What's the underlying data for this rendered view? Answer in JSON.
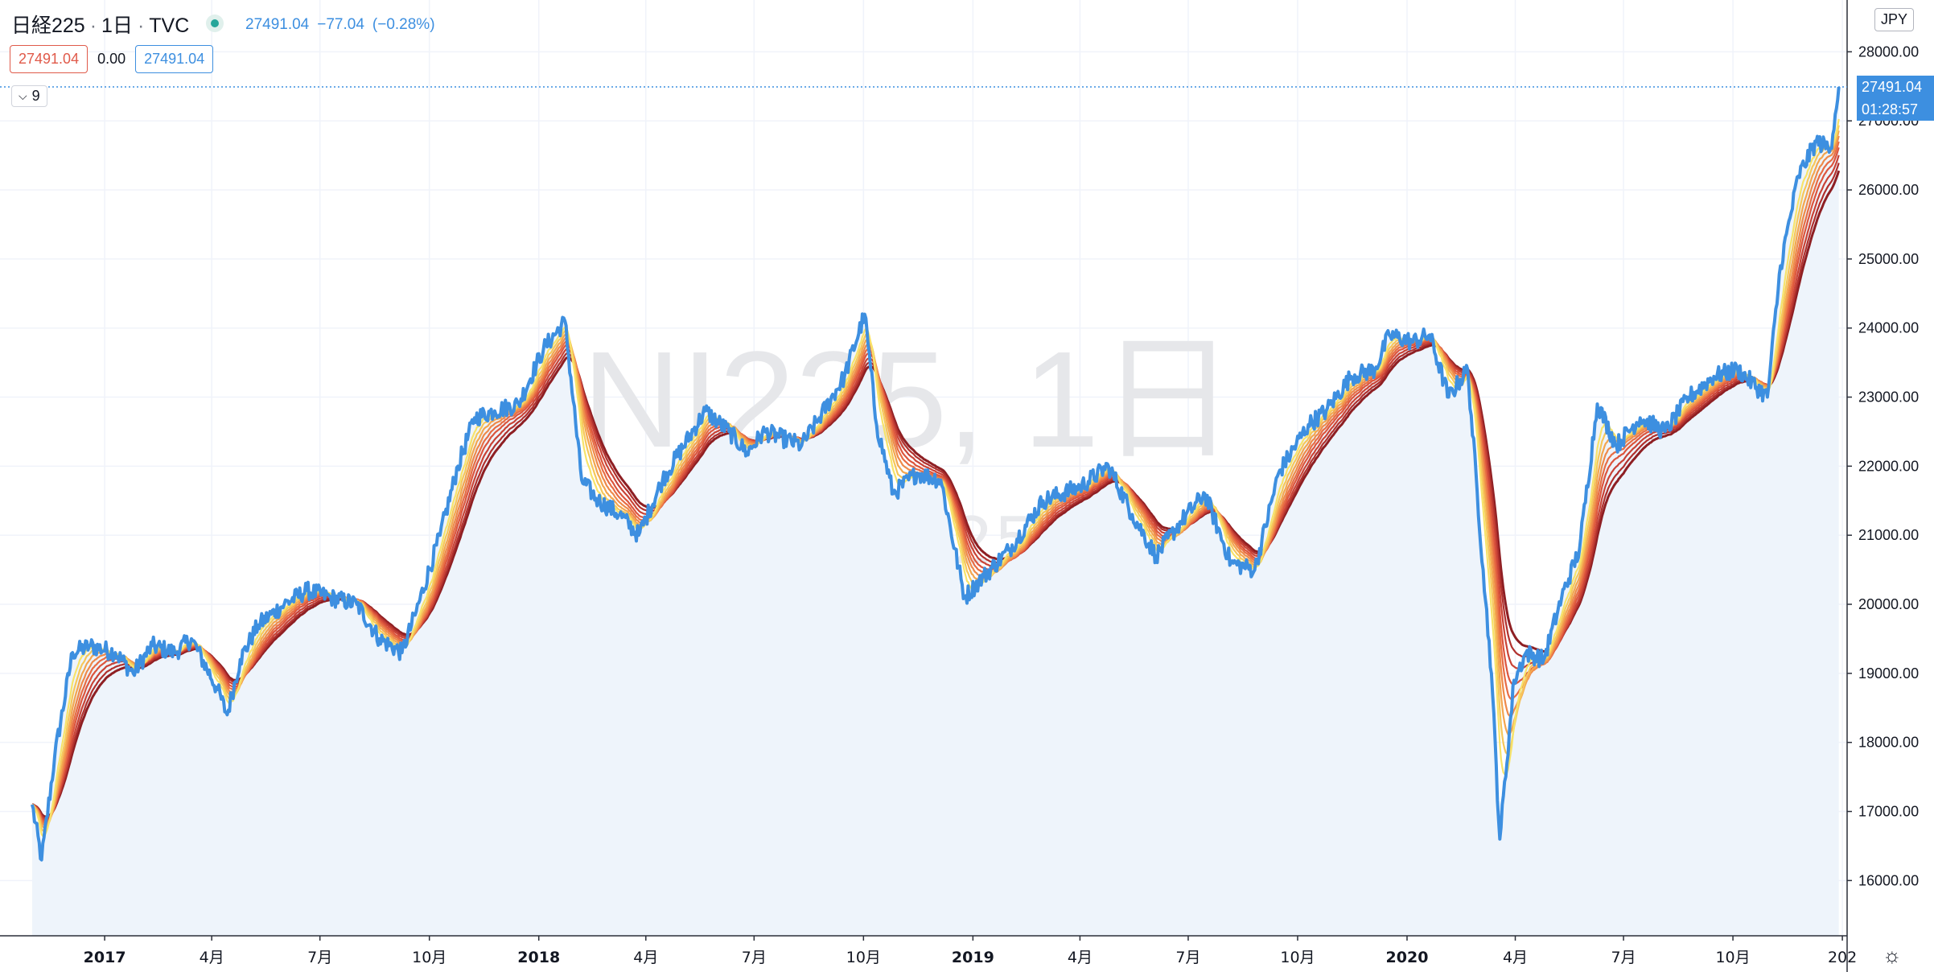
{
  "header": {
    "symbol": "日経225",
    "interval": "1日",
    "exchange": "TVC",
    "last": "27491.04",
    "change": "−77.04",
    "change_pct": "(−0.28%)"
  },
  "indicator_values": {
    "v1": "27491.04",
    "v2": "0.00",
    "v3": "27491.04"
  },
  "collapse_count": "9",
  "currency": "JPY",
  "price_label": "27491.04",
  "countdown": "01:28:57",
  "watermark": {
    "line1": "NI225, 1日",
    "line2": "日経225"
  },
  "colors": {
    "price": "#3d8fe0",
    "area_fill": "#eef4fb",
    "ribbon": [
      "#f7e36a",
      "#f6c75a",
      "#f3a64f",
      "#ee8a4a",
      "#e76d44",
      "#dc553d",
      "#c94336",
      "#b0302d",
      "#8e1f23"
    ]
  },
  "chart_data": {
    "type": "line",
    "x": [
      "2016-11-01",
      "2016-11-09",
      "2016-11-20",
      "2016-12-05",
      "2016-12-20",
      "2017-01-10",
      "2017-01-25",
      "2017-02-10",
      "2017-03-01",
      "2017-03-15",
      "2017-04-05",
      "2017-04-14",
      "2017-04-25",
      "2017-05-10",
      "2017-06-01",
      "2017-06-20",
      "2017-07-10",
      "2017-08-01",
      "2017-08-20",
      "2017-09-08",
      "2017-09-20",
      "2017-10-10",
      "2017-10-25",
      "2017-11-08",
      "2017-11-25",
      "2017-12-15",
      "2018-01-05",
      "2018-01-23",
      "2018-02-06",
      "2018-02-20",
      "2018-03-10",
      "2018-03-26",
      "2018-04-15",
      "2018-05-21",
      "2018-06-10",
      "2018-06-25",
      "2018-07-10",
      "2018-08-10",
      "2018-08-25",
      "2018-09-15",
      "2018-10-02",
      "2018-10-12",
      "2018-10-26",
      "2018-11-15",
      "2018-12-05",
      "2018-12-25",
      "2019-01-10",
      "2019-02-01",
      "2019-03-01",
      "2019-04-01",
      "2019-04-25",
      "2019-05-15",
      "2019-06-04",
      "2019-06-25",
      "2019-07-15",
      "2019-08-06",
      "2019-08-26",
      "2019-09-15",
      "2019-10-10",
      "2019-10-25",
      "2019-11-15",
      "2019-12-05",
      "2019-12-17",
      "2020-01-06",
      "2020-01-20",
      "2020-02-05",
      "2020-02-21",
      "2020-03-05",
      "2020-03-12",
      "2020-03-19",
      "2020-03-31",
      "2020-04-10",
      "2020-04-25",
      "2020-05-10",
      "2020-05-25",
      "2020-06-09",
      "2020-06-25",
      "2020-07-15",
      "2020-08-05",
      "2020-08-25",
      "2020-09-15",
      "2020-10-05",
      "2020-10-30",
      "2020-11-10",
      "2020-11-25",
      "2020-12-10",
      "2020-12-22",
      "2020-12-29"
    ],
    "price": [
      17100,
      16300,
      17800,
      19300,
      19400,
      19300,
      19000,
      19400,
      19300,
      19500,
      18800,
      18400,
      19200,
      19700,
      20000,
      20200,
      20100,
      20000,
      19500,
      19300,
      19900,
      21000,
      22000,
      22700,
      22800,
      22900,
      23700,
      24100,
      21800,
      21500,
      21300,
      21000,
      21800,
      22800,
      22500,
      22200,
      22500,
      22300,
      22700,
      23300,
      24200,
      22600,
      21600,
      21900,
      21800,
      20100,
      20400,
      20800,
      21500,
      21700,
      22000,
      21300,
      20700,
      21200,
      21600,
      20600,
      20500,
      21900,
      22600,
      22800,
      23300,
      23400,
      23900,
      23800,
      23900,
      23000,
      23400,
      20500,
      19000,
      16600,
      18900,
      19300,
      19200,
      20100,
      20800,
      22900,
      22300,
      22700,
      22500,
      23000,
      23300,
      23400,
      23000,
      24900,
      26200,
      26700,
      26600,
      27491.04
    ],
    "y_ticks": [
      16000,
      17000,
      18000,
      19000,
      20000,
      21000,
      22000,
      23000,
      24000,
      25000,
      26000,
      27000,
      28000
    ],
    "y_tick_labels": [
      "16000.00",
      "17000.00",
      "18000.00",
      "19000.00",
      "20000.00",
      "21000.00",
      "22000.00",
      "23000.00",
      "24000.00",
      "25000.00",
      "26000.00",
      "27000.00",
      "28000.00"
    ],
    "ylim": [
      15200,
      28750
    ],
    "x_ticks": [
      {
        "date": "2017-01-01",
        "label": "2017"
      },
      {
        "date": "2017-04-01",
        "label": "4月"
      },
      {
        "date": "2017-07-01",
        "label": "7月"
      },
      {
        "date": "2017-10-01",
        "label": "10月"
      },
      {
        "date": "2018-01-01",
        "label": "2018"
      },
      {
        "date": "2018-04-01",
        "label": "4月"
      },
      {
        "date": "2018-07-01",
        "label": "7月"
      },
      {
        "date": "2018-10-01",
        "label": "10月"
      },
      {
        "date": "2019-01-01",
        "label": "2019"
      },
      {
        "date": "2019-04-01",
        "label": "4月"
      },
      {
        "date": "2019-07-01",
        "label": "7月"
      },
      {
        "date": "2019-10-01",
        "label": "10月"
      },
      {
        "date": "2020-01-01",
        "label": "2020"
      },
      {
        "date": "2020-04-01",
        "label": "4月"
      },
      {
        "date": "2020-07-01",
        "label": "7月"
      },
      {
        "date": "2020-10-01",
        "label": "10月"
      },
      {
        "date": "2021-01-01",
        "label": "202"
      }
    ],
    "xlim": [
      "2016-10-05",
      "2021-01-05"
    ],
    "ribbon_count": 9,
    "grid": true,
    "area_fill": true
  }
}
